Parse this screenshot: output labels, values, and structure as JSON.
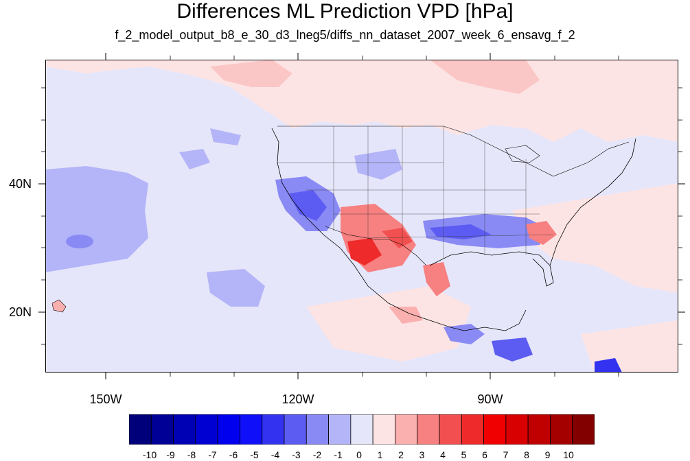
{
  "title": "Differences ML Prediction VPD [hPa]",
  "subtitle": "f_2_model_output_b8_e_30_d3_lneg5/diffs_nn_dataset_2007_week_6_ensavg_f_2",
  "map": {
    "lon_labels": [
      "150W",
      "120W",
      "90W"
    ],
    "lat_labels": [
      "40N",
      "20N"
    ],
    "lon_range": [
      -159,
      -61
    ],
    "lat_range": [
      11,
      58
    ],
    "field_description": "VPD difference (ML prediction minus reference)"
  },
  "colorbar": {
    "labels": [
      "-10",
      "-9",
      "-8",
      "-7",
      "-6",
      "-5",
      "-4",
      "-3",
      "-2",
      "-1",
      "0",
      "1",
      "2",
      "3",
      "4",
      "5",
      "6",
      "7",
      "8",
      "9",
      "10"
    ],
    "colors": [
      "#00007a",
      "#000096",
      "#0000b4",
      "#0000d2",
      "#0000ef",
      "#0f0ffa",
      "#3232f0",
      "#5c5cf2",
      "#8a8af5",
      "#b4b4f8",
      "#e6e6fa",
      "#fde4e4",
      "#fbb0b0",
      "#f78080",
      "#f25050",
      "#ee2a2a",
      "#f00000",
      "#d80000",
      "#c00000",
      "#a40000",
      "#820000"
    ]
  }
}
